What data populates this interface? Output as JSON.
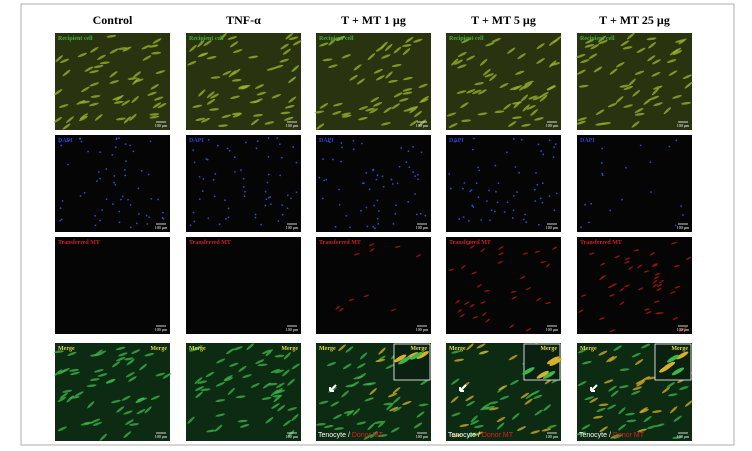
{
  "columns": [
    "Control",
    "TNF-α",
    "T + MT 1 µg",
    "T + MT 5 µg",
    "T + MT 25 µg"
  ],
  "rows": [
    {
      "label": "Recipient cell"
    },
    {
      "label": "DAPI"
    },
    {
      "label": "Transferred MT"
    },
    {
      "label": "Merge"
    }
  ],
  "scale_bar": "100 µm",
  "merge_corner_label": "Merge",
  "caption": {
    "cell": "Tenocyte",
    "separator": "/",
    "donor": "Donor MT"
  }
}
